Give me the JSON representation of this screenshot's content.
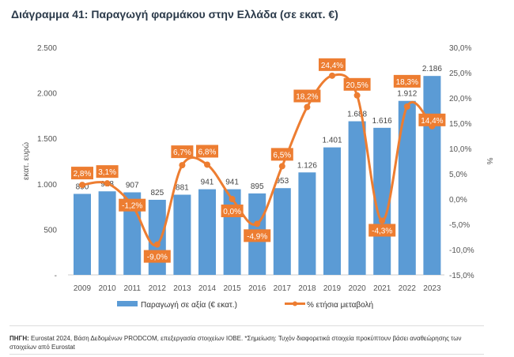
{
  "title": "Διάγραμμα 41: Παραγωγή φαρμάκου στην Ελλάδα (σε εκατ. €)",
  "chart_data": {
    "type": "bar+line",
    "categories": [
      "2009",
      "2010",
      "2011",
      "2012",
      "2013",
      "2014",
      "2015",
      "2016",
      "2017",
      "2018",
      "2019",
      "2020",
      "2021",
      "2022",
      "2023"
    ],
    "series": [
      {
        "name": "Παραγωγή σε αξία (€ εκατ.)",
        "type": "bar",
        "axis": "left",
        "color": "#5b9bd5",
        "values": [
          890,
          918,
          907,
          825,
          881,
          941,
          941,
          895,
          953,
          1126,
          1401,
          1688,
          1616,
          1912,
          2186
        ],
        "labels": [
          "890",
          "918",
          "907",
          "825",
          "881",
          "941",
          "941",
          "895",
          "953",
          "1.126",
          "1.401",
          "1.688",
          "1.616",
          "1.912",
          "2.186"
        ]
      },
      {
        "name": "% ετήσια μεταβολή",
        "type": "line",
        "axis": "right",
        "color": "#ed7d31",
        "values": [
          2.8,
          3.1,
          -1.2,
          -9.0,
          6.7,
          6.8,
          0.0,
          -4.9,
          6.5,
          18.2,
          24.4,
          20.5,
          -4.3,
          18.3,
          14.4
        ],
        "labels": [
          "2,8%",
          "3,1%",
          "-1,2%",
          "-9,0%",
          "6,7%",
          "6,8%",
          "0,0%",
          "-4,9%",
          "6,5%",
          "18,2%",
          "24,4%",
          "20,5%",
          "-4,3%",
          "18,3%",
          "14,4%"
        ]
      }
    ],
    "ylabel_left": "εκατ. ευρώ",
    "ylabel_right": "%",
    "ylim_left": [
      0,
      2500
    ],
    "ylim_right": [
      -15,
      30
    ],
    "yticks_left": [
      "-",
      "500",
      "1.000",
      "1.500",
      "2.000",
      "2.500"
    ],
    "yticks_right": [
      "-15,0%",
      "-10,0%",
      "-5,0%",
      "0,0%",
      "5,0%",
      "10,0%",
      "15,0%",
      "20,0%",
      "25,0%",
      "30,0%"
    ],
    "grid": false,
    "legend": "bottom"
  },
  "source": {
    "label": "ΠΗΓΗ:",
    "text": " Eurostat 2024, Βάση Δεδομένων PRODCOM, επεξεργασία στοιχείων ΙΟΒΕ. *Σημείωση: Τυχόν διαφορετικά στοιχεία προκύπτουν βάσει αναθεώρησης των στοιχείων από Eurostat"
  }
}
